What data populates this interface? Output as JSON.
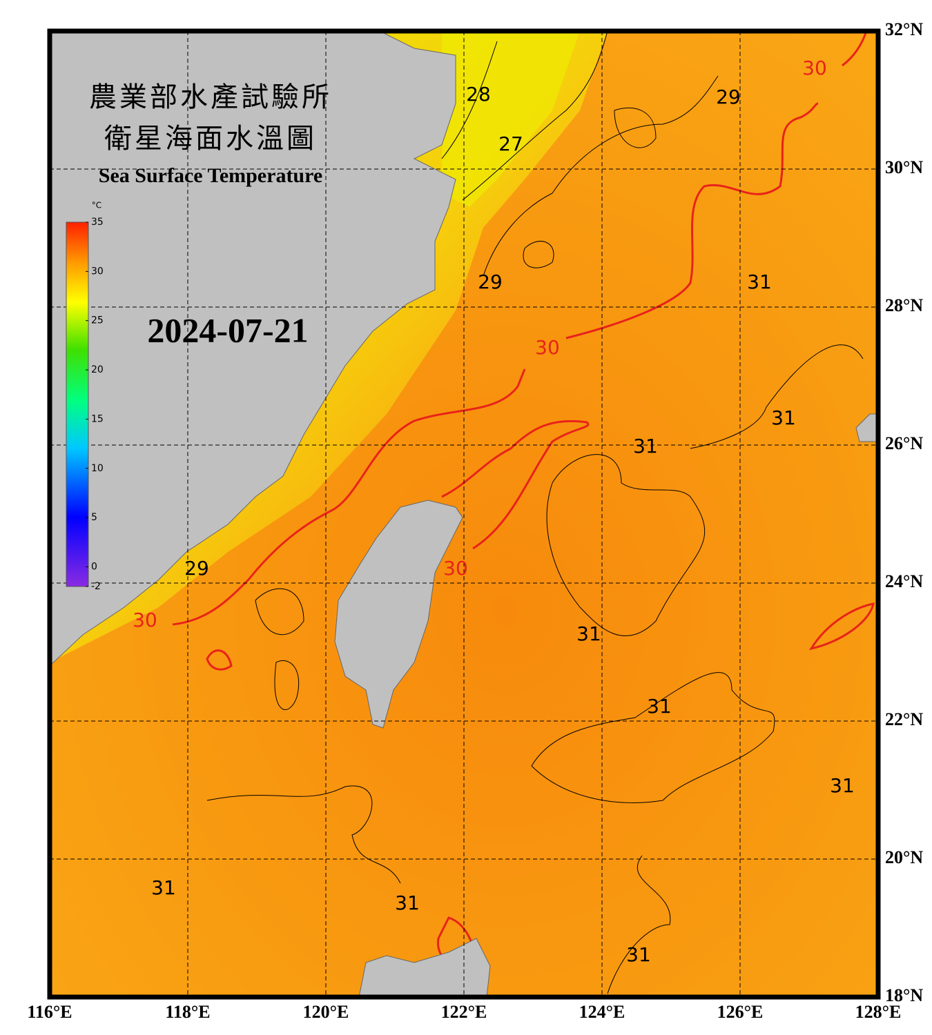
{
  "title_zh_1": "農業部水產試驗所",
  "title_zh_2": "衛星海面水溫圖",
  "title_en": "Sea Surface Temperature",
  "date": "2024-07-21",
  "colorbar": {
    "unit": "°C",
    "range": [
      -2,
      35
    ],
    "ticks": [
      35,
      30,
      25,
      20,
      15,
      10,
      5,
      0,
      -2
    ]
  },
  "map": {
    "lon_range": [
      116,
      128
    ],
    "lat_range": [
      18,
      32
    ],
    "grid": true,
    "lon_ticks": [
      {
        "value": 116,
        "label": "116°E"
      },
      {
        "value": 118,
        "label": "118°E"
      },
      {
        "value": 120,
        "label": "120°E"
      },
      {
        "value": 122,
        "label": "122°E"
      },
      {
        "value": 124,
        "label": "124°E"
      },
      {
        "value": 126,
        "label": "126°E"
      },
      {
        "value": 128,
        "label": "128°E"
      }
    ],
    "lat_ticks": [
      {
        "value": 32,
        "label": "32°N"
      },
      {
        "value": 30,
        "label": "30°N"
      },
      {
        "value": 28,
        "label": "28°N"
      },
      {
        "value": 26,
        "label": "26°N"
      },
      {
        "value": 24,
        "label": "24°N"
      },
      {
        "value": 22,
        "label": "22°N"
      },
      {
        "value": 20,
        "label": "20°N"
      },
      {
        "value": 18,
        "label": "18°N"
      }
    ]
  },
  "contour_colors": {
    "30": "#e8231a",
    "other": "#000000"
  },
  "contour_labels": [
    {
      "value": 28,
      "lon": 122.21,
      "lat": 31.07
    },
    {
      "value": 27,
      "lon": 122.68,
      "lat": 30.35
    },
    {
      "value": 29,
      "lon": 125.83,
      "lat": 31.03
    },
    {
      "value": 30,
      "lon": 127.08,
      "lat": 31.45
    },
    {
      "value": 29,
      "lon": 122.38,
      "lat": 28.35
    },
    {
      "value": 31,
      "lon": 126.28,
      "lat": 28.35
    },
    {
      "value": 30,
      "lon": 123.21,
      "lat": 27.4
    },
    {
      "value": 31,
      "lon": 126.63,
      "lat": 26.38
    },
    {
      "value": 31,
      "lon": 124.63,
      "lat": 25.97
    },
    {
      "value": 30,
      "lon": 121.88,
      "lat": 24.2
    },
    {
      "value": 29,
      "lon": 118.13,
      "lat": 24.2
    },
    {
      "value": 30,
      "lon": 117.38,
      "lat": 23.45
    },
    {
      "value": 31,
      "lon": 123.81,
      "lat": 23.25
    },
    {
      "value": 31,
      "lon": 124.83,
      "lat": 22.2
    },
    {
      "value": 31,
      "lon": 127.48,
      "lat": 21.05
    },
    {
      "value": 31,
      "lon": 117.65,
      "lat": 19.57
    },
    {
      "value": 31,
      "lon": 121.18,
      "lat": 19.35
    },
    {
      "value": 31,
      "lon": 124.53,
      "lat": 18.6
    }
  ]
}
